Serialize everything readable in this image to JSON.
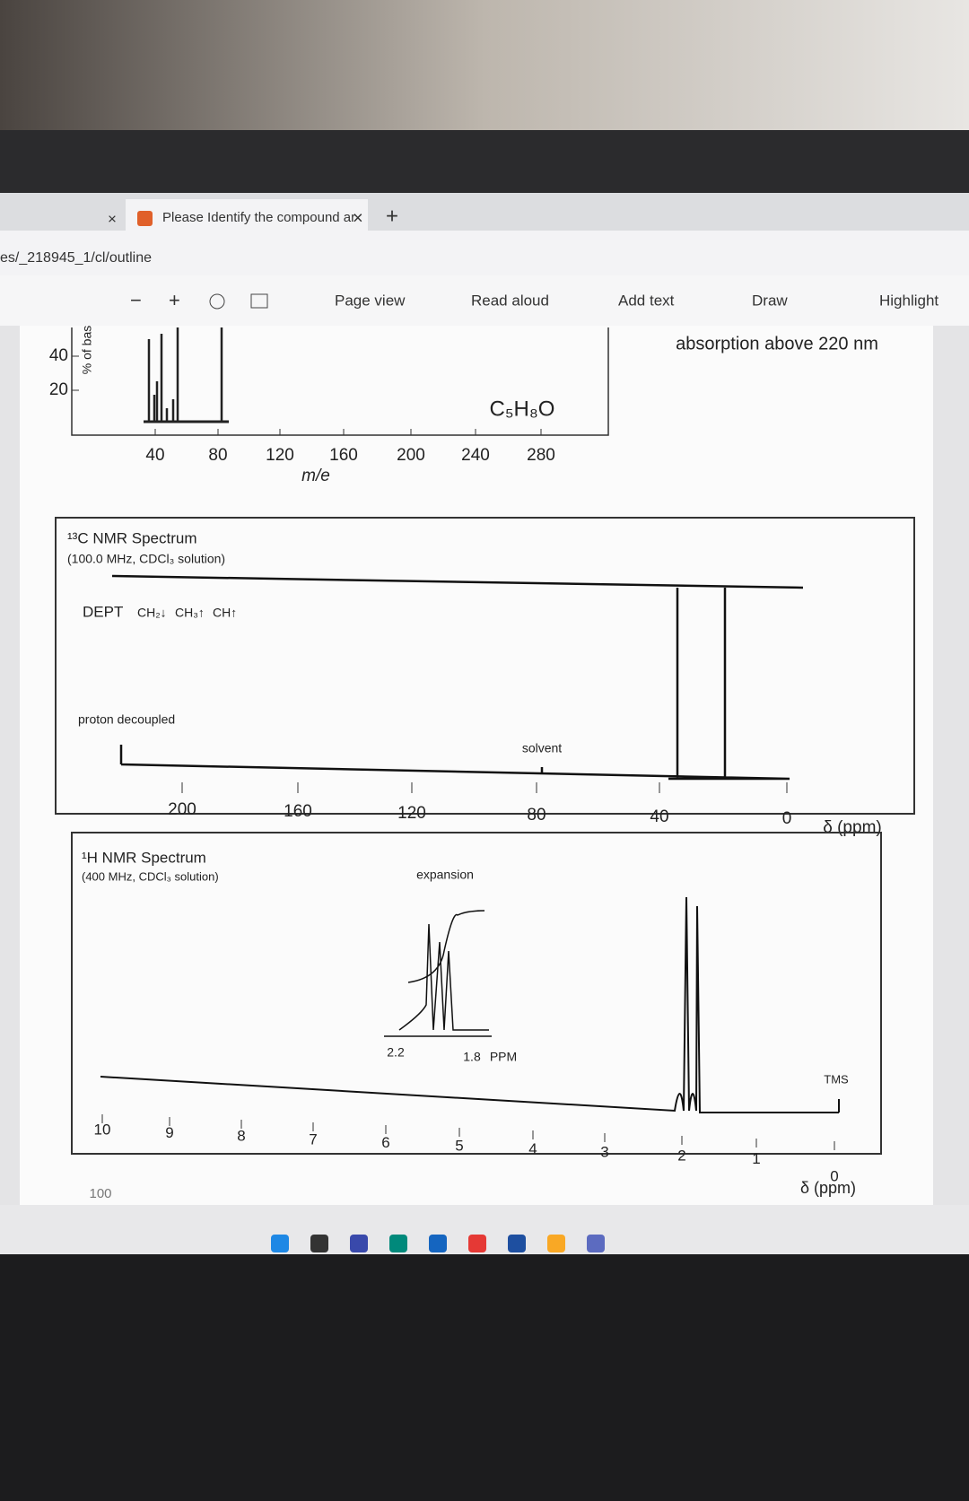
{
  "browser": {
    "tab_title": "Please Identify the compound ar",
    "url": "es/_218945_1/cl/outline",
    "toolbar": [
      "Page view",
      "Read aloud",
      "Add text",
      "Draw",
      "Highlight"
    ]
  },
  "mass_spectrum": {
    "y_label": "% of bas",
    "y_ticks": [
      "40",
      "20"
    ],
    "x_ticks": [
      "40",
      "80",
      "120",
      "160",
      "200",
      "240",
      "280"
    ],
    "x_label": "m/e",
    "formula": "C₅H₈O"
  },
  "note": "absorption above 220 nm",
  "c13_nmr": {
    "title": "¹³C NMR Spectrum",
    "conditions": "(100.0 MHz, CDCl₃ solution)",
    "dept": "DEPT",
    "dept_labels": [
      "CH₂↓",
      "CH₃↑",
      "CH↑"
    ],
    "proton_decoupled": "proton decoupled",
    "solvent": "solvent",
    "x_ticks": [
      "200",
      "160",
      "120",
      "80",
      "40",
      "0"
    ],
    "x_label": "δ (ppm)"
  },
  "h1_nmr": {
    "title": "¹H NMR Spectrum",
    "conditions": "(400 MHz, CDCl₃ solution)",
    "expansion": "expansion",
    "expansion_ticks": [
      "2.2",
      "1.8"
    ],
    "expansion_unit": "PPM",
    "tms": "TMS",
    "x_ticks": [
      "10",
      "9",
      "8",
      "7",
      "6",
      "5",
      "4",
      "3",
      "2",
      "1",
      "0"
    ],
    "x_label": "δ (ppm)",
    "footer": "100"
  }
}
